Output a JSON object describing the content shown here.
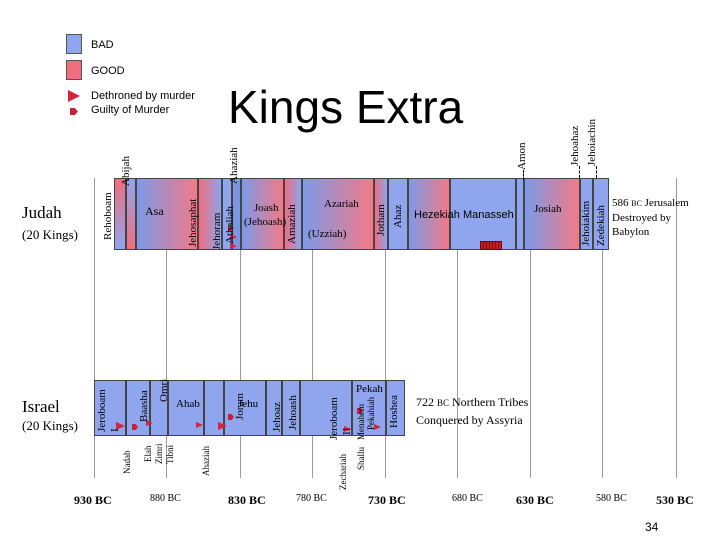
{
  "title": "Kings Extra",
  "legend": {
    "bad": "BAD",
    "good": "GOOD",
    "dethroned": "Dethroned by murder",
    "guilty": "Guilty of Murder"
  },
  "colors": {
    "bad": "#8fa6ee",
    "good": "#f26d7d",
    "murder": "#d6223c"
  },
  "judah": {
    "name": "Judah",
    "count": "(20 Kings)",
    "kings": {
      "rehoboam": "Rehoboam",
      "abijah": "Abijah",
      "asa": "Asa",
      "jehosaphat": "Jehosaphat",
      "jehoram": "Jehoram",
      "ahaziah": "Ahaziah",
      "athaliah": "Athaliah",
      "joash": "Joash",
      "jehoash": "(Jehoash)",
      "amaziah": "Amaziah",
      "azariah": "Azariah",
      "uzziah": "(Uzziah)",
      "jotham": "Jotham",
      "ahaz": "Ahaz",
      "hezekiah": "Hezekiah",
      "manasseh": "Manasseh",
      "amon": "Amon",
      "josiah": "Josiah",
      "jehoahaz": "Jehoahaz",
      "jehoiakim": "Jehoiakim",
      "jehoiachin": "Jehoiachin",
      "zedekiah": "Zedekiah"
    },
    "end_note": {
      "year": "586",
      "era": "BC",
      "text1": "Jerusalem",
      "text2": "Destroyed by",
      "text3": "Babylon"
    }
  },
  "israel": {
    "name": "Israel",
    "count": "(20 Kings)",
    "kings": {
      "jeroboam1a": "Jeroboam",
      "jeroboam1b": "I",
      "nadab": "Nadab",
      "baasha": "Baasha",
      "elah": "Elah",
      "zimri": "Zimri",
      "tibni": "Tibni",
      "omri": "Omri",
      "ahab": "Ahab",
      "ahaziah": "Ahaziah",
      "joram": "Joram",
      "jehu": "Jehu",
      "jehoaz": "Jehoaz",
      "jehoash": "Jehoash",
      "jeroboam2a": "Jeroboam",
      "jeroboam2b": "II",
      "zechariah": "Zechariah",
      "shallum": "Shallu",
      "menahem": "Menahem",
      "pekahiah": "Pekahiah",
      "pekah": "Pekah",
      "hoshea": "Hoshea"
    },
    "end_note": {
      "year": "722",
      "era": "BC",
      "text1": "Northern Tribes",
      "text2": "Conquered by Assyria"
    }
  },
  "timeline": [
    "930 BC",
    "880 BC",
    "830 BC",
    "780 BC",
    "730 BC",
    "680 BC",
    "630 BC",
    "580 BC",
    "530 BC"
  ],
  "page_number": "34"
}
